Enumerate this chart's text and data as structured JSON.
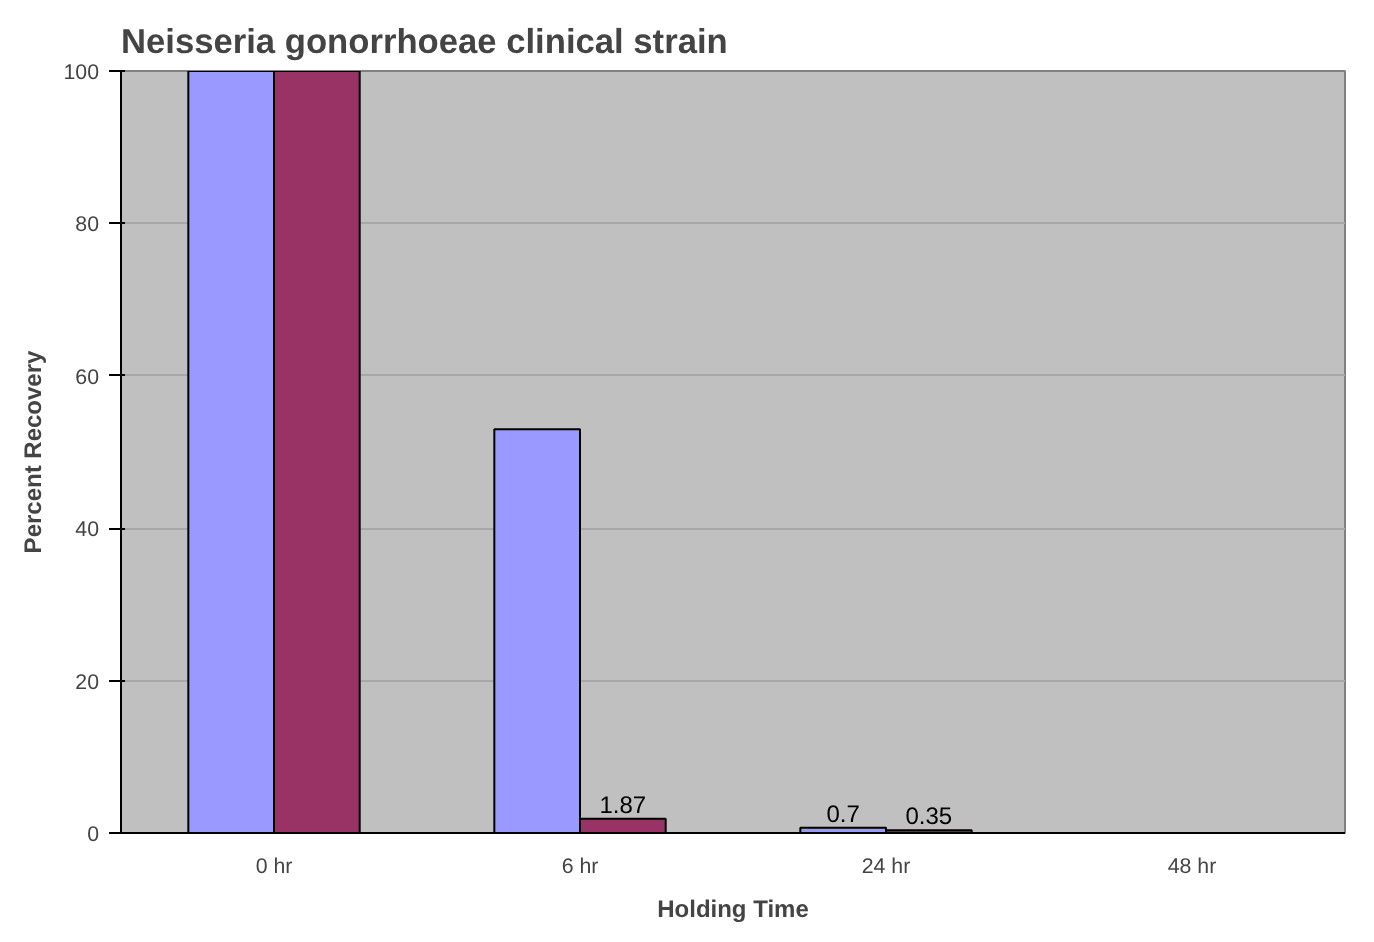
{
  "chart_data": {
    "type": "bar",
    "title": "Neisseria gonorrhoeae clinical strain",
    "xlabel": "Holding Time",
    "ylabel": "Percent Recovery",
    "categories": [
      "0 hr",
      "6 hr",
      "24 hr",
      "48 hr"
    ],
    "series": [
      {
        "color": "#9999ff",
        "values": [
          100,
          53,
          0.7,
          null
        ],
        "value_labels": [
          null,
          null,
          "0.7",
          null
        ]
      },
      {
        "color": "#993366",
        "values": [
          100,
          1.87,
          0.35,
          null
        ],
        "value_labels": [
          null,
          "1.87",
          "0.35",
          null
        ]
      }
    ],
    "ylim": [
      0,
      100
    ],
    "yticks": [
      0,
      20,
      40,
      60,
      80,
      100
    ],
    "grid": "y"
  }
}
